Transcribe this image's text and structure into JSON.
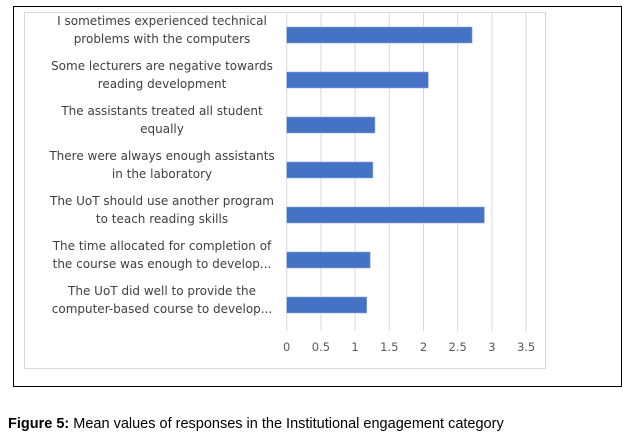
{
  "caption": {
    "label": "Figure 5:",
    "text": " Mean values of responses in the Institutional engagement category"
  },
  "chart_data": {
    "type": "bar",
    "orientation": "horizontal",
    "title": "",
    "xlabel": "",
    "ylabel": "",
    "categories": [
      [
        "I sometimes experienced technical",
        "problems with the computers"
      ],
      [
        "Some lecturers are negative towards",
        "reading development"
      ],
      [
        "The assistants treated all student",
        "equally"
      ],
      [
        "There were always enough assistants",
        "in the laboratory"
      ],
      [
        "The UoT should use another program",
        "to teach reading skills"
      ],
      [
        "The time allocated for completion of",
        "the course was enough to develop..."
      ],
      [
        "The UoT did well to provide the",
        "computer-based course to develop..."
      ]
    ],
    "values": [
      2.71,
      2.07,
      1.29,
      1.26,
      2.89,
      1.22,
      1.17
    ],
    "xlim": [
      0,
      3.5
    ],
    "xticks": [
      "0",
      "0.5",
      "1",
      "1.5",
      "2",
      "2.5",
      "3",
      "3.5"
    ],
    "grid": true,
    "legend": "none",
    "bar_color": "#4472c4",
    "grid_color": "#d9d9d9"
  }
}
